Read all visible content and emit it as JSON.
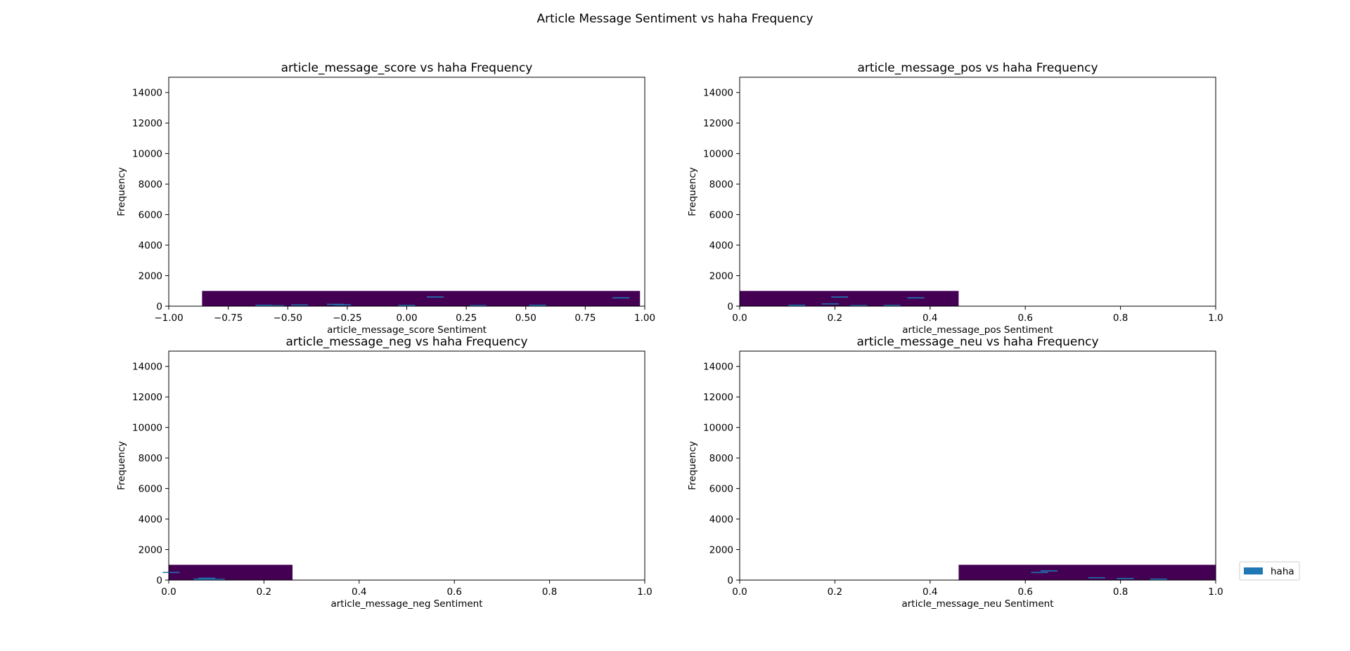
{
  "figure": {
    "suptitle": "Article Message Sentiment vs haha Frequency",
    "legend": {
      "label": "haha",
      "color": "#1f77b4",
      "placement": "right"
    },
    "fill_color": "#440154",
    "accent_color": "#1f77b4"
  },
  "chart_data": [
    {
      "type": "bar",
      "title": "article_message_score vs haha Frequency",
      "xlabel": "article_message_score Sentiment",
      "ylabel": "Frequency",
      "xlim": [
        -1.0,
        1.0
      ],
      "ylim": [
        0,
        15000
      ],
      "xticks": [
        "−1.00",
        "−0.75",
        "−0.50",
        "−0.25",
        "0.00",
        "0.25",
        "0.50",
        "0.75",
        "1.00"
      ],
      "xtick_values": [
        -1.0,
        -0.75,
        -0.5,
        -0.25,
        0.0,
        0.25,
        0.5,
        0.75,
        1.0
      ],
      "yticks": [
        "0",
        "2000",
        "4000",
        "6000",
        "8000",
        "10000",
        "12000",
        "14000"
      ],
      "ytick_values": [
        0,
        2000,
        4000,
        6000,
        8000,
        10000,
        12000,
        14000
      ],
      "block": {
        "x0": -0.86,
        "x1": 0.98,
        "height": 1000
      },
      "series": [
        {
          "x": [
            -0.6,
            -0.55,
            -0.45,
            -0.3,
            -0.27,
            0.0,
            0.12,
            0.3,
            0.55,
            0.9
          ],
          "y": [
            60,
            40,
            80,
            120,
            90,
            50,
            600,
            40,
            60,
            550
          ]
        }
      ]
    },
    {
      "type": "bar",
      "title": "article_message_pos vs haha Frequency",
      "xlabel": "article_message_pos Sentiment",
      "ylabel": "Frequency",
      "xlim": [
        0.0,
        1.0
      ],
      "ylim": [
        0,
        15000
      ],
      "xticks": [
        "0.0",
        "0.2",
        "0.4",
        "0.6",
        "0.8",
        "1.0"
      ],
      "xtick_values": [
        0.0,
        0.2,
        0.4,
        0.6,
        0.8,
        1.0
      ],
      "yticks": [
        "0",
        "2000",
        "4000",
        "6000",
        "8000",
        "10000",
        "12000",
        "14000"
      ],
      "ytick_values": [
        0,
        2000,
        4000,
        6000,
        8000,
        10000,
        12000,
        14000
      ],
      "block": {
        "x0": 0.0,
        "x1": 0.46,
        "height": 1000
      },
      "series": [
        {
          "x": [
            0.12,
            0.19,
            0.21,
            0.25,
            0.32,
            0.37
          ],
          "y": [
            60,
            150,
            600,
            40,
            50,
            550
          ]
        }
      ]
    },
    {
      "type": "bar",
      "title": "article_message_neg vs haha Frequency",
      "xlabel": "article_message_neg Sentiment",
      "ylabel": "Frequency",
      "xlim": [
        0.0,
        1.0
      ],
      "ylim": [
        0,
        15000
      ],
      "xticks": [
        "0.0",
        "0.2",
        "0.4",
        "0.6",
        "0.8",
        "1.0"
      ],
      "xtick_values": [
        0.0,
        0.2,
        0.4,
        0.6,
        0.8,
        1.0
      ],
      "yticks": [
        "0",
        "2000",
        "4000",
        "6000",
        "8000",
        "10000",
        "12000",
        "14000"
      ],
      "ytick_values": [
        0,
        2000,
        4000,
        6000,
        8000,
        10000,
        12000,
        14000
      ],
      "block": {
        "x0": 0.0,
        "x1": 0.26,
        "height": 1000
      },
      "series": [
        {
          "x": [
            0.005,
            0.07,
            0.08,
            0.1
          ],
          "y": [
            500,
            60,
            120,
            50
          ]
        }
      ]
    },
    {
      "type": "bar",
      "title": "article_message_neu vs haha Frequency",
      "xlabel": "article_message_neu Sentiment",
      "ylabel": "Frequency",
      "xlim": [
        0.0,
        1.0
      ],
      "ylim": [
        0,
        15000
      ],
      "xticks": [
        "0.0",
        "0.2",
        "0.4",
        "0.6",
        "0.8",
        "1.0"
      ],
      "xtick_values": [
        0.0,
        0.2,
        0.4,
        0.6,
        0.8,
        1.0
      ],
      "yticks": [
        "0",
        "2000",
        "4000",
        "6000",
        "8000",
        "10000",
        "12000",
        "14000"
      ],
      "ytick_values": [
        0,
        2000,
        4000,
        6000,
        8000,
        10000,
        12000,
        14000
      ],
      "block": {
        "x0": 0.46,
        "x1": 1.0,
        "height": 1000
      },
      "series": [
        {
          "x": [
            0.63,
            0.65,
            0.75,
            0.81,
            0.88
          ],
          "y": [
            500,
            600,
            150,
            100,
            60
          ]
        }
      ]
    }
  ]
}
